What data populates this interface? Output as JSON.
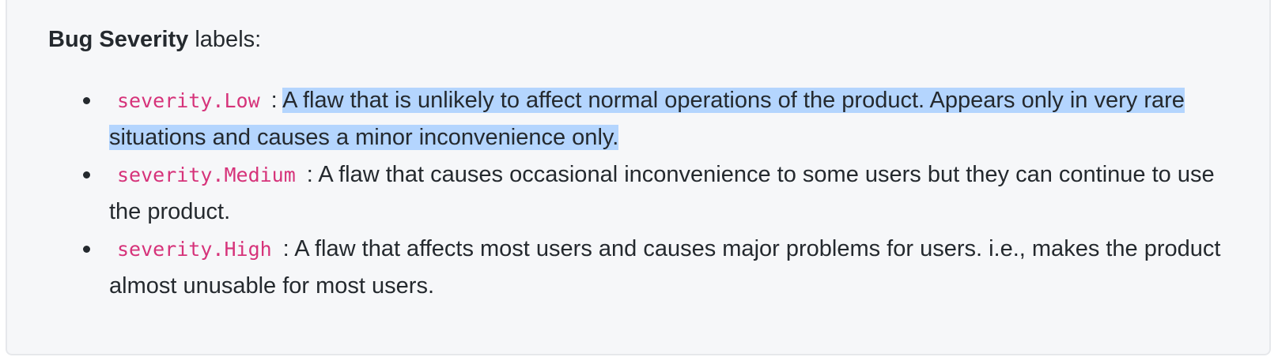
{
  "heading": {
    "bold": "Bug Severity",
    "rest": "labels:"
  },
  "items": [
    {
      "code": "severity.Low",
      "separator": ":",
      "text_selected": "A flaw that is unlikely to affect normal operations of the product. Appears only in very rare situations and causes a minor inconvenience only.",
      "text": ""
    },
    {
      "code": "severity.Medium",
      "separator": ":",
      "text_selected": "",
      "text": "A flaw that causes occasional inconvenience to some users but they can continue to use the product."
    },
    {
      "code": "severity.High",
      "separator": ":",
      "text_selected": "",
      "text": "A flaw that affects most users and causes major problems for users. i.e., makes the product almost unusable for most users."
    }
  ],
  "colors": {
    "code_text": "#d6337a",
    "selection": "#b4d5fe",
    "panel_bg": "#f6f7f9"
  }
}
